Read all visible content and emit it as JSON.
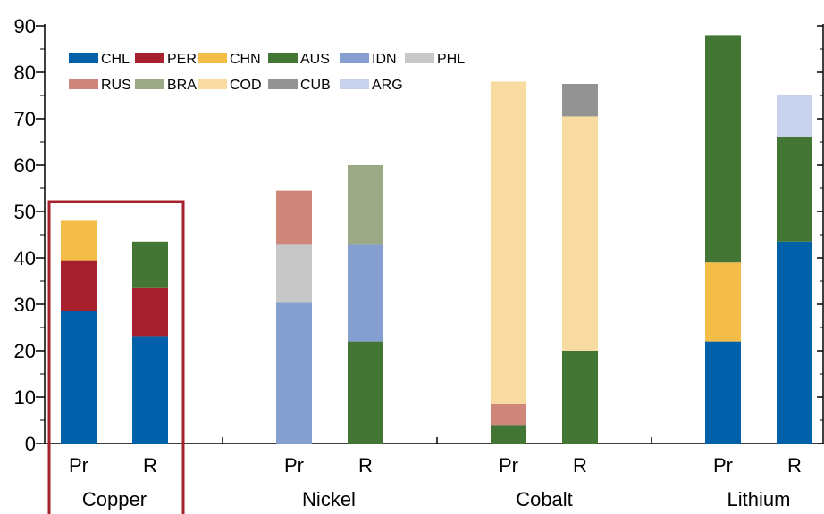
{
  "chart_data": {
    "type": "bar",
    "stacked": true,
    "title": "",
    "xlabel": "",
    "ylabel": "",
    "ylim": [
      0,
      90
    ],
    "yticks": [
      0,
      10,
      20,
      30,
      40,
      50,
      60,
      70,
      80,
      90
    ],
    "groups": [
      {
        "name": "Copper",
        "highlighted": true,
        "bars": [
          {
            "label": "Pr",
            "segments": [
              {
                "series": "CHL",
                "value": 28.5
              },
              {
                "series": "PER",
                "value": 11
              },
              {
                "series": "CHN",
                "value": 8.5
              }
            ]
          },
          {
            "label": "R",
            "segments": [
              {
                "series": "CHL",
                "value": 23
              },
              {
                "series": "PER",
                "value": 10.5
              },
              {
                "series": "AUS",
                "value": 10
              }
            ]
          }
        ]
      },
      {
        "name": "Nickel",
        "bars": [
          {
            "label": "Pr",
            "segments": [
              {
                "series": "IDN",
                "value": 30.5
              },
              {
                "series": "PHL",
                "value": 12.5
              },
              {
                "series": "RUS",
                "value": 11.5
              }
            ]
          },
          {
            "label": "R",
            "segments": [
              {
                "series": "AUS",
                "value": 22
              },
              {
                "series": "IDN",
                "value": 21
              },
              {
                "series": "BRA",
                "value": 17
              }
            ]
          }
        ]
      },
      {
        "name": "Cobalt",
        "bars": [
          {
            "label": "Pr",
            "segments": [
              {
                "series": "AUS",
                "value": 4
              },
              {
                "series": "RUS",
                "value": 4.5
              },
              {
                "series": "COD",
                "value": 69.5
              }
            ]
          },
          {
            "label": "R",
            "segments": [
              {
                "series": "AUS",
                "value": 20
              },
              {
                "series": "COD",
                "value": 50.5
              },
              {
                "series": "CUB",
                "value": 7
              }
            ]
          }
        ]
      },
      {
        "name": "Lithium",
        "bars": [
          {
            "label": "Pr",
            "segments": [
              {
                "series": "CHL",
                "value": 22
              },
              {
                "series": "CHN",
                "value": 17
              },
              {
                "series": "AUS",
                "value": 49
              }
            ]
          },
          {
            "label": "R",
            "segments": [
              {
                "series": "CHL",
                "value": 43.5
              },
              {
                "series": "AUS",
                "value": 22.5
              },
              {
                "series": "ARG",
                "value": 9
              }
            ]
          }
        ]
      }
    ],
    "legend": {
      "placement": "top-left",
      "entries": [
        {
          "name": "CHL",
          "color": "#0060AA"
        },
        {
          "name": "PER",
          "color": "#A6202E"
        },
        {
          "name": "CHN",
          "color": "#F3BD47"
        },
        {
          "name": "AUS",
          "color": "#437535"
        },
        {
          "name": "IDN",
          "color": "#849FD0"
        },
        {
          "name": "PHL",
          "color": "#C8C8C8"
        },
        {
          "name": "RUS",
          "color": "#CF877B"
        },
        {
          "name": "BRA",
          "color": "#9BAA84"
        },
        {
          "name": "COD",
          "color": "#F8DBA1"
        },
        {
          "name": "CUB",
          "color": "#939393"
        },
        {
          "name": "ARG",
          "color": "#C8D2EC"
        }
      ]
    },
    "highlight_color": "#A6202E"
  }
}
